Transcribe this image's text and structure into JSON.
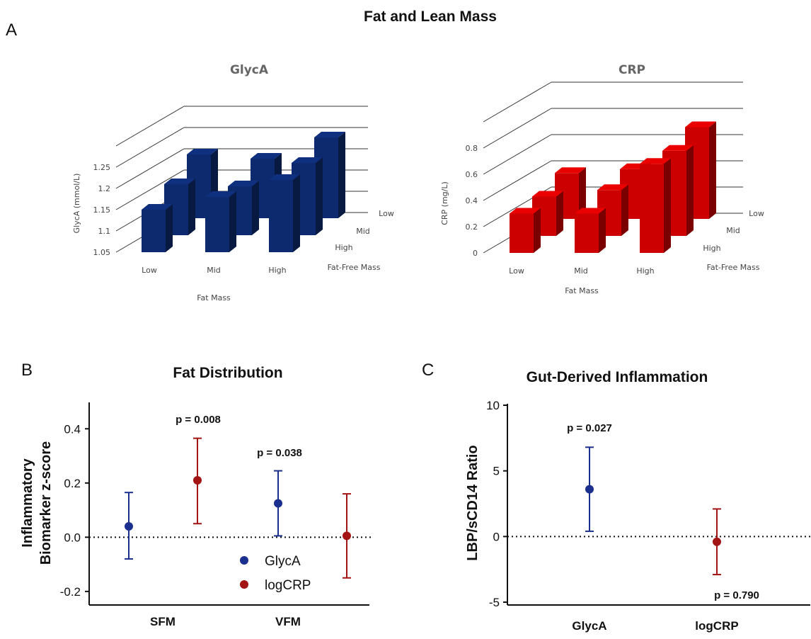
{
  "figure": {
    "title": "Fat and Lean Mass",
    "panel_letters": {
      "a": "A",
      "b": "B",
      "c": "C"
    }
  },
  "colors": {
    "glyca": "#0d2a6e",
    "crp": "#cc0000",
    "point_blue": "#1b2f8f",
    "point_red": "#a31414"
  },
  "chart_data": [
    {
      "id": "glyca3d",
      "type": "bar",
      "title": "GlycA",
      "ylabel": "GlycA (mmol/L)",
      "xlabel": "Fat Mass",
      "zlabel": "Fat-Free Mass",
      "categories": [
        "Low",
        "Mid",
        "High"
      ],
      "depth_categories": [
        "Low",
        "Mid",
        "High"
      ],
      "yticks": [
        "1.05",
        "1.1",
        "1.15",
        "1.2",
        "1.25"
      ],
      "ylim": [
        1.05,
        1.3
      ],
      "series": [
        {
          "name": "High",
          "values": [
            1.15,
            1.18,
            1.22
          ]
        },
        {
          "name": "Mid",
          "values": [
            1.17,
            1.165,
            1.22
          ]
        },
        {
          "name": "Low",
          "values": [
            1.2,
            1.19,
            1.24
          ]
        }
      ],
      "color": "#0d2a6e"
    },
    {
      "id": "crp3d",
      "type": "bar",
      "title": "CRP",
      "ylabel": "CRP (mg/L)",
      "xlabel": "Fat Mass",
      "zlabel": "Fat-Free Mass",
      "categories": [
        "Low",
        "Mid",
        "High"
      ],
      "depth_categories": [
        "Low",
        "Mid",
        "High"
      ],
      "yticks": [
        "0",
        "0.2",
        "0.4",
        "0.6",
        "0.8"
      ],
      "ylim": [
        0,
        1.0
      ],
      "series": [
        {
          "name": "High",
          "values": [
            0.3,
            0.3,
            0.68
          ]
        },
        {
          "name": "Mid",
          "values": [
            0.3,
            0.35,
            0.65
          ]
        },
        {
          "name": "Low",
          "values": [
            0.35,
            0.38,
            0.7
          ]
        }
      ],
      "color": "#cc0000"
    },
    {
      "id": "fatdist",
      "type": "scatter",
      "title": "Fat Distribution",
      "ylabel_lines": [
        "Inflammatory",
        "Biomarker z-score"
      ],
      "categories": [
        "SFM",
        "VFM"
      ],
      "yticks": [
        0.4,
        0.2,
        0.0,
        -0.2
      ],
      "ytick_labels": [
        "0.4",
        "0.2",
        "0.0",
        "-0.2"
      ],
      "ylim": [
        -0.25,
        0.5
      ],
      "series": [
        {
          "name": "GlycA",
          "points": [
            {
              "x": "SFM",
              "y": 0.04,
              "lo": -0.08,
              "hi": 0.165
            },
            {
              "x": "VFM",
              "y": 0.125,
              "lo": 0.005,
              "hi": 0.245
            }
          ]
        },
        {
          "name": "logCRP",
          "points": [
            {
              "x": "SFM",
              "y": 0.21,
              "lo": 0.05,
              "hi": 0.365
            },
            {
              "x": "VFM",
              "y": 0.005,
              "lo": -0.15,
              "hi": 0.16
            }
          ]
        }
      ],
      "annotations": [
        "p = 0.008",
        "p = 0.038"
      ],
      "legend": [
        "GlycA",
        "logCRP"
      ]
    },
    {
      "id": "gut",
      "type": "scatter",
      "title": "Gut-Derived Inflammation",
      "ylabel": "LBP/sCD14 Ratio",
      "categories": [
        "GlycA",
        "logCRP"
      ],
      "yticks": [
        10,
        5,
        0,
        -5
      ],
      "ytick_labels": [
        "10",
        "5",
        "0",
        "-5"
      ],
      "ylim": [
        -5,
        10
      ],
      "points": [
        {
          "x": "GlycA",
          "y": 3.6,
          "lo": 0.4,
          "hi": 6.8
        },
        {
          "x": "logCRP",
          "y": -0.4,
          "lo": -2.9,
          "hi": 2.1
        }
      ],
      "annotations": [
        "p = 0.027",
        "p = 0.790"
      ]
    }
  ]
}
